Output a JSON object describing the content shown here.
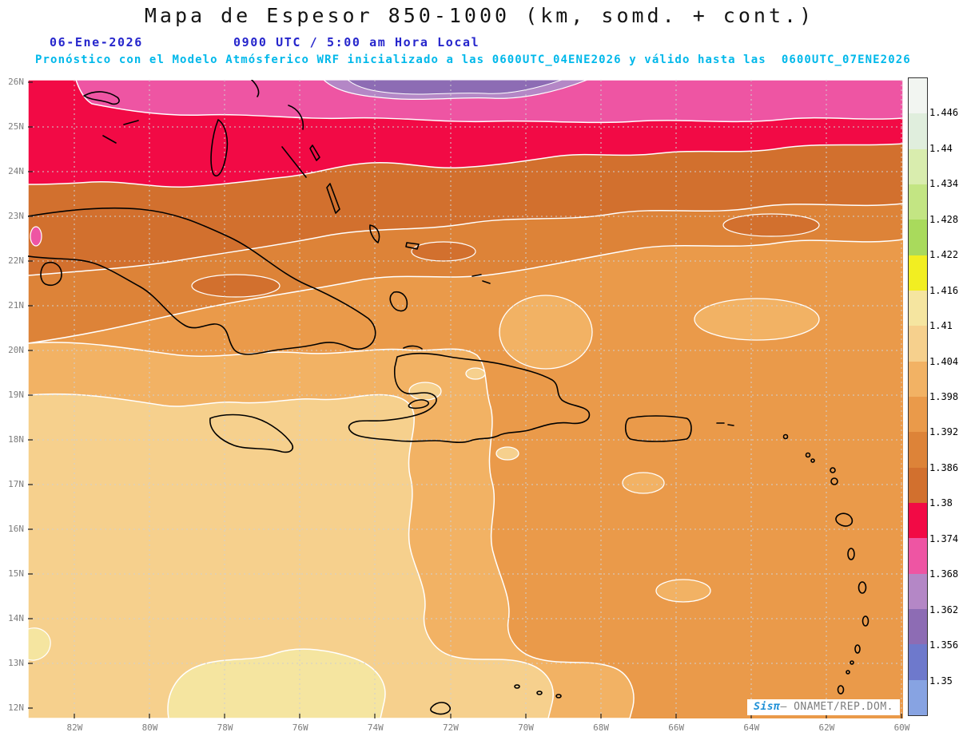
{
  "header": {
    "title": "Mapa de Espesor 850-1000 (km, somd. + cont.)",
    "date": "06-Ene-2026",
    "time": "0900 UTC / 5:00 am Hora Local",
    "model_line": "Pronóstico con el Modelo Atmósferico WRF inicializado a las 0600UTC_04ENE2026 y válido hasta las  0600UTC_07ENE2026"
  },
  "axes": {
    "lat_labels": [
      "26N",
      "25N",
      "24N",
      "23N",
      "22N",
      "21N",
      "20N",
      "19N",
      "18N",
      "17N",
      "16N",
      "15N",
      "14N",
      "13N",
      "12N"
    ],
    "lon_labels": [
      "82W",
      "80W",
      "78W",
      "76W",
      "74W",
      "72W",
      "70W",
      "68W",
      "66W",
      "64W",
      "62W",
      "60W"
    ]
  },
  "colorbar": {
    "labels": [
      "1.446",
      "1.44",
      "1.434",
      "1.428",
      "1.422",
      "1.416",
      "1.41",
      "1.404",
      "1.398",
      "1.392",
      "1.386",
      "1.38",
      "1.374",
      "1.368",
      "1.362",
      "1.356",
      "1.35"
    ],
    "colors": [
      "#f2f5f1",
      "#e0eedd",
      "#d9edae",
      "#c3e583",
      "#a9da5c",
      "#f2ee21",
      "#f5e5a0",
      "#f6d08d",
      "#f2b264",
      "#ea9a4a",
      "#dd8338",
      "#d2702e",
      "#f20a45",
      "#ee55a3",
      "#b487c6",
      "#8d6cb4",
      "#6e79cc",
      "#87a3e2"
    ]
  },
  "palette": {
    "base": "#ea9a4a",
    "light_orange": "#f2b264",
    "tan": "#f6d08d",
    "khaki": "#f5e5a0",
    "mid_orange": "#dd8338",
    "dark_orange": "#d2702e",
    "red": "#f20a45",
    "pink": "#ee55a3",
    "violet": "#b487c6",
    "purple": "#8d6cb4",
    "coastline": "#000000",
    "grid": "#d0d0d0",
    "header_blue": "#2626cc",
    "header_cyan": "#00b8ea"
  },
  "branding": {
    "app": "Sisπ",
    "org": "– ONAMET/REP.DOM."
  }
}
